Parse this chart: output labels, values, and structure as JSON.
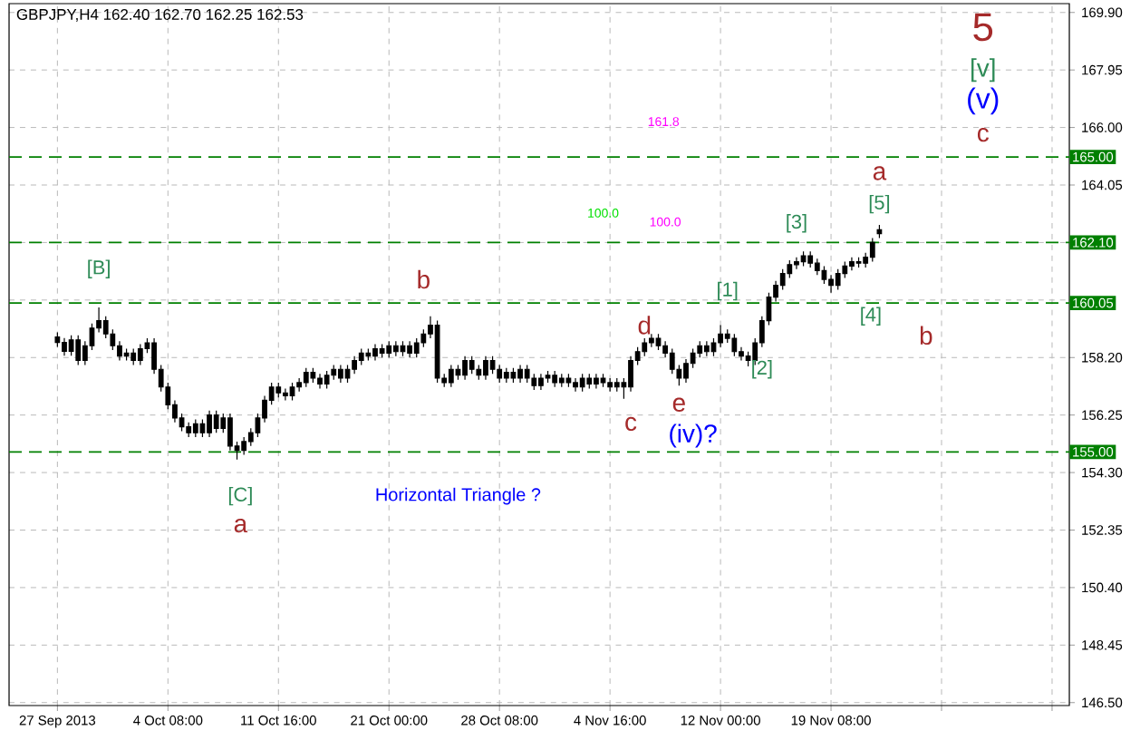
{
  "chart_data": {
    "type": "candlestick",
    "title": "GBPJPY,H4  162.40 162.70 162.25 162.53",
    "categories": [
      "27 Sep 2013",
      null,
      null,
      null,
      null,
      null,
      null,
      null,
      null,
      null,
      null,
      null,
      null,
      null,
      null,
      null,
      "4 Oct 08:00",
      null,
      null,
      null,
      null,
      null,
      null,
      null,
      null,
      null,
      null,
      null,
      null,
      null,
      null,
      null,
      "11 Oct 16:00",
      null,
      null,
      null,
      null,
      null,
      null,
      null,
      null,
      null,
      null,
      null,
      null,
      null,
      null,
      null,
      "21 Oct 00:00",
      null,
      null,
      null,
      null,
      null,
      null,
      null,
      null,
      null,
      null,
      null,
      null,
      null,
      null,
      null,
      "28 Oct 08:00",
      null,
      null,
      null,
      null,
      null,
      null,
      null,
      null,
      null,
      null,
      null,
      null,
      null,
      null,
      null,
      "4 Nov 16:00",
      null,
      null,
      null,
      null,
      null,
      null,
      null,
      null,
      null,
      null,
      null,
      null,
      null,
      null,
      null,
      "12 Nov 00:00",
      null,
      null,
      null,
      null,
      null,
      null,
      null,
      null,
      null,
      null,
      null,
      null,
      null,
      null,
      null,
      "19 Nov 08:00",
      null,
      null,
      null,
      null,
      null,
      null,
      null,
      null,
      null,
      null,
      null,
      null,
      null,
      null,
      null,
      null,
      null,
      null,
      null,
      null,
      null,
      null,
      null,
      null,
      null,
      null,
      null,
      null,
      null,
      null,
      null,
      null,
      null,
      null
    ],
    "ohlc": [
      [
        158.9,
        159.05,
        158.56,
        158.71
      ],
      [
        158.71,
        158.86,
        158.26,
        158.41
      ],
      [
        158.41,
        158.95,
        158.26,
        158.8
      ],
      [
        158.8,
        158.95,
        157.95,
        158.1
      ],
      [
        158.1,
        158.75,
        157.95,
        158.6
      ],
      [
        158.6,
        159.35,
        158.45,
        159.2
      ],
      [
        159.2,
        159.9,
        159.05,
        159.45
      ],
      [
        159.45,
        159.6,
        158.85,
        159.0
      ],
      [
        159.0,
        159.15,
        158.45,
        158.6
      ],
      [
        158.6,
        158.75,
        158.1,
        158.25
      ],
      [
        158.25,
        158.5,
        158.1,
        158.35
      ],
      [
        158.35,
        158.5,
        157.95,
        158.1
      ],
      [
        158.1,
        158.65,
        157.95,
        158.5
      ],
      [
        158.5,
        158.85,
        158.35,
        158.7
      ],
      [
        158.7,
        158.85,
        157.65,
        157.8
      ],
      [
        157.8,
        157.95,
        157.05,
        157.2
      ],
      [
        157.2,
        157.35,
        156.45,
        156.6
      ],
      [
        156.6,
        156.75,
        156.0,
        156.15
      ],
      [
        156.15,
        156.3,
        155.7,
        155.85
      ],
      [
        155.85,
        156.0,
        155.5,
        155.65
      ],
      [
        155.65,
        156.1,
        155.5,
        155.95
      ],
      [
        155.95,
        156.1,
        155.5,
        155.65
      ],
      [
        155.65,
        156.4,
        155.5,
        156.25
      ],
      [
        156.25,
        156.4,
        155.65,
        155.8
      ],
      [
        155.8,
        156.3,
        155.65,
        156.15
      ],
      [
        156.15,
        156.3,
        155.05,
        155.2
      ],
      [
        155.2,
        155.35,
        154.74,
        155.05
      ],
      [
        155.05,
        155.5,
        154.9,
        155.35
      ],
      [
        155.35,
        155.8,
        155.2,
        155.65
      ],
      [
        155.65,
        156.3,
        155.5,
        156.15
      ],
      [
        156.15,
        156.9,
        156.0,
        156.75
      ],
      [
        156.75,
        157.35,
        156.6,
        157.2
      ],
      [
        157.2,
        157.35,
        156.85,
        157.0
      ],
      [
        157.0,
        157.15,
        156.75,
        156.9
      ],
      [
        156.9,
        157.35,
        156.75,
        157.2
      ],
      [
        157.2,
        157.5,
        157.05,
        157.35
      ],
      [
        157.35,
        157.85,
        157.2,
        157.7
      ],
      [
        157.7,
        157.85,
        157.35,
        157.5
      ],
      [
        157.5,
        157.65,
        157.15,
        157.3
      ],
      [
        157.3,
        157.75,
        157.15,
        157.6
      ],
      [
        157.6,
        157.95,
        157.45,
        157.8
      ],
      [
        157.8,
        157.95,
        157.35,
        157.5
      ],
      [
        157.5,
        157.95,
        157.35,
        157.8
      ],
      [
        157.8,
        158.25,
        157.65,
        158.1
      ],
      [
        158.1,
        158.5,
        157.95,
        158.35
      ],
      [
        158.35,
        158.5,
        158.1,
        158.25
      ],
      [
        158.25,
        158.65,
        158.1,
        158.5
      ],
      [
        158.5,
        158.65,
        158.2,
        158.35
      ],
      [
        158.35,
        158.75,
        158.2,
        158.6
      ],
      [
        158.6,
        158.75,
        158.25,
        158.4
      ],
      [
        158.4,
        158.75,
        158.25,
        158.6
      ],
      [
        158.6,
        158.75,
        158.2,
        158.35
      ],
      [
        158.35,
        158.85,
        158.2,
        158.7
      ],
      [
        158.7,
        159.15,
        158.55,
        159.0
      ],
      [
        159.0,
        159.6,
        158.85,
        159.3
      ],
      [
        159.3,
        159.45,
        157.35,
        157.5
      ],
      [
        157.5,
        157.65,
        157.2,
        157.35
      ],
      [
        157.35,
        157.95,
        157.2,
        157.8
      ],
      [
        157.8,
        157.95,
        157.45,
        157.6
      ],
      [
        157.6,
        158.25,
        157.45,
        158.1
      ],
      [
        158.1,
        158.25,
        157.65,
        157.8
      ],
      [
        157.8,
        157.95,
        157.45,
        157.6
      ],
      [
        157.6,
        158.25,
        157.45,
        158.1
      ],
      [
        158.1,
        158.25,
        157.65,
        157.8
      ],
      [
        157.8,
        157.95,
        157.35,
        157.5
      ],
      [
        157.5,
        157.85,
        157.35,
        157.7
      ],
      [
        157.7,
        157.85,
        157.35,
        157.5
      ],
      [
        157.5,
        157.95,
        157.35,
        157.8
      ],
      [
        157.8,
        157.95,
        157.35,
        157.5
      ],
      [
        157.5,
        157.65,
        157.1,
        157.25
      ],
      [
        157.25,
        157.65,
        157.1,
        157.5
      ],
      [
        157.5,
        157.75,
        157.35,
        157.6
      ],
      [
        157.6,
        157.75,
        157.2,
        157.35
      ],
      [
        157.35,
        157.65,
        157.2,
        157.5
      ],
      [
        157.5,
        157.65,
        157.2,
        157.35
      ],
      [
        157.35,
        157.5,
        157.05,
        157.2
      ],
      [
        157.2,
        157.65,
        157.05,
        157.5
      ],
      [
        157.5,
        157.65,
        157.15,
        157.3
      ],
      [
        157.3,
        157.65,
        157.15,
        157.5
      ],
      [
        157.5,
        157.65,
        157.2,
        157.35
      ],
      [
        157.35,
        157.5,
        157.05,
        157.2
      ],
      [
        157.2,
        157.5,
        157.05,
        157.35
      ],
      [
        157.35,
        157.5,
        156.8,
        157.2
      ],
      [
        157.2,
        158.25,
        157.05,
        158.1
      ],
      [
        158.1,
        158.55,
        157.95,
        158.4
      ],
      [
        158.4,
        158.85,
        158.25,
        158.7
      ],
      [
        158.7,
        159.0,
        158.55,
        158.85
      ],
      [
        158.85,
        159.0,
        158.45,
        158.6
      ],
      [
        158.6,
        158.75,
        158.2,
        158.35
      ],
      [
        158.35,
        158.5,
        157.65,
        157.8
      ],
      [
        157.8,
        157.95,
        157.25,
        157.5
      ],
      [
        157.5,
        158.15,
        157.35,
        158.0
      ],
      [
        158.0,
        158.5,
        157.85,
        158.35
      ],
      [
        158.35,
        158.75,
        158.2,
        158.6
      ],
      [
        158.6,
        158.75,
        158.25,
        158.4
      ],
      [
        158.4,
        158.85,
        158.25,
        158.7
      ],
      [
        158.7,
        159.3,
        158.55,
        159.0
      ],
      [
        159.0,
        159.15,
        158.7,
        158.85
      ],
      [
        158.85,
        159.0,
        158.25,
        158.4
      ],
      [
        158.4,
        158.55,
        158.1,
        158.25
      ],
      [
        158.25,
        158.4,
        157.9,
        158.1
      ],
      [
        158.1,
        158.85,
        157.95,
        158.7
      ],
      [
        158.7,
        159.6,
        158.55,
        159.45
      ],
      [
        159.45,
        160.4,
        159.3,
        160.25
      ],
      [
        160.25,
        160.8,
        160.1,
        160.65
      ],
      [
        160.65,
        161.2,
        160.5,
        161.05
      ],
      [
        161.05,
        161.5,
        160.9,
        161.35
      ],
      [
        161.35,
        161.6,
        161.2,
        161.45
      ],
      [
        161.45,
        161.8,
        161.3,
        161.65
      ],
      [
        161.65,
        161.8,
        161.25,
        161.4
      ],
      [
        161.4,
        161.55,
        161.0,
        161.15
      ],
      [
        161.15,
        161.3,
        160.7,
        160.85
      ],
      [
        160.85,
        161.0,
        160.4,
        160.65
      ],
      [
        160.65,
        161.2,
        160.5,
        161.05
      ],
      [
        161.05,
        161.45,
        160.9,
        161.3
      ],
      [
        161.3,
        161.6,
        161.15,
        161.45
      ],
      [
        161.45,
        161.6,
        161.25,
        161.4
      ],
      [
        161.4,
        161.75,
        161.25,
        161.6
      ],
      [
        161.6,
        162.25,
        161.45,
        162.1
      ],
      [
        162.4,
        162.7,
        162.25,
        162.53
      ],
      null,
      null,
      null,
      null,
      null,
      null,
      null,
      null,
      null,
      null,
      null,
      null,
      null,
      null,
      null,
      null,
      null,
      null,
      null,
      null,
      null,
      null,
      null,
      null,
      null,
      null,
      null
    ],
    "color": "#000000",
    "ylim": [
      146.4,
      170.2
    ],
    "yticks": [
      {
        "value": 169.9,
        "label": "169.90"
      },
      {
        "value": 167.95,
        "label": "167.95"
      },
      {
        "value": 166.0,
        "label": "166.00"
      },
      {
        "value": 164.05,
        "label": "164.05"
      },
      {
        "value": 162.1,
        "label": null
      },
      {
        "value": 160.15,
        "label": null
      },
      {
        "value": 158.2,
        "label": "158.20"
      },
      {
        "value": 156.25,
        "label": "156.25"
      },
      {
        "value": 154.3,
        "label": "154.30"
      },
      {
        "value": 152.35,
        "label": "152.35"
      },
      {
        "value": 150.4,
        "label": "150.40"
      },
      {
        "value": 148.45,
        "label": "148.45"
      },
      {
        "value": 146.5,
        "label": "146.50"
      }
    ],
    "grid": true,
    "ref_lines": [
      {
        "axis": "y",
        "value": 165.0,
        "label": "165.00",
        "color": "#008000",
        "line_style": "dashed"
      },
      {
        "axis": "y",
        "value": 162.1,
        "label": "162.10",
        "color": "#008000",
        "line_style": "dashed"
      },
      {
        "axis": "y",
        "value": 160.05,
        "label": "160.05",
        "color": "#008000",
        "line_style": "dashed"
      },
      {
        "axis": "y",
        "value": 155.0,
        "label": "155.00",
        "color": "#008000",
        "line_style": "dashed"
      }
    ],
    "annotations": [
      "[B]",
      "b",
      "[C]",
      "a",
      "Horizontal Triangle ?",
      "c",
      "d",
      "e",
      "(iv)?",
      "100.0",
      "100.0",
      "161.8",
      "[1]",
      "[2]",
      "[3]",
      "[4]",
      "[5]",
      "a",
      "b",
      "c",
      "(v)",
      "[v]",
      "5"
    ]
  }
}
